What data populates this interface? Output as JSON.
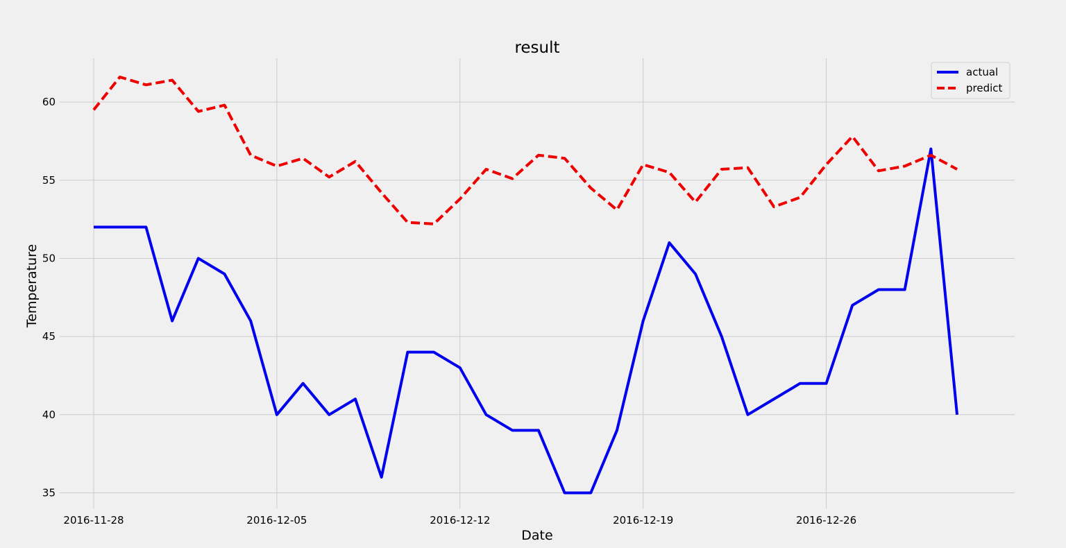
{
  "chart_data": {
    "type": "line",
    "title": "result",
    "xlabel": "Date",
    "ylabel": "Temperature",
    "x": [
      "2016-11-28",
      "2016-11-29",
      "2016-11-30",
      "2016-12-01",
      "2016-12-02",
      "2016-12-03",
      "2016-12-04",
      "2016-12-05",
      "2016-12-06",
      "2016-12-07",
      "2016-12-08",
      "2016-12-09",
      "2016-12-10",
      "2016-12-11",
      "2016-12-12",
      "2016-12-13",
      "2016-12-14",
      "2016-12-15",
      "2016-12-16",
      "2016-12-17",
      "2016-12-18",
      "2016-12-19",
      "2016-12-20",
      "2016-12-21",
      "2016-12-22",
      "2016-12-23",
      "2016-12-24",
      "2016-12-25",
      "2016-12-26",
      "2016-12-27",
      "2016-12-28",
      "2016-12-29",
      "2016-12-30",
      "2016-12-31"
    ],
    "xticks": [
      "2016-11-28",
      "2016-12-05",
      "2016-12-12",
      "2016-12-19",
      "2016-12-26"
    ],
    "yticks": [
      35,
      40,
      45,
      50,
      55,
      60
    ],
    "ylim": [
      34.0,
      62.8
    ],
    "xlim": [
      "2016-11-26.7",
      "2017-01-02.2"
    ],
    "grid": true,
    "legend_position": "top-right",
    "series": [
      {
        "name": "actual",
        "color": "#0000ee",
        "style": "solid",
        "values": [
          52,
          52,
          52,
          46,
          50,
          49,
          46,
          40,
          42,
          40,
          41,
          36,
          44,
          44,
          43,
          40,
          39,
          39,
          35,
          35,
          39,
          46,
          51,
          49,
          45,
          40,
          41,
          42,
          42,
          47,
          48,
          48,
          57,
          40
        ]
      },
      {
        "name": "predict",
        "color": "#ee0000",
        "style": "dashed",
        "values": [
          59.5,
          61.6,
          61.1,
          61.4,
          59.4,
          59.8,
          56.6,
          55.9,
          56.4,
          55.2,
          56.2,
          54.2,
          52.3,
          52.2,
          53.8,
          55.7,
          55.1,
          56.6,
          56.4,
          54.5,
          53.1,
          56.0,
          55.5,
          53.6,
          55.7,
          55.8,
          53.3,
          53.9,
          56.0,
          57.8,
          55.6,
          55.9,
          56.6,
          55.7
        ]
      }
    ]
  }
}
